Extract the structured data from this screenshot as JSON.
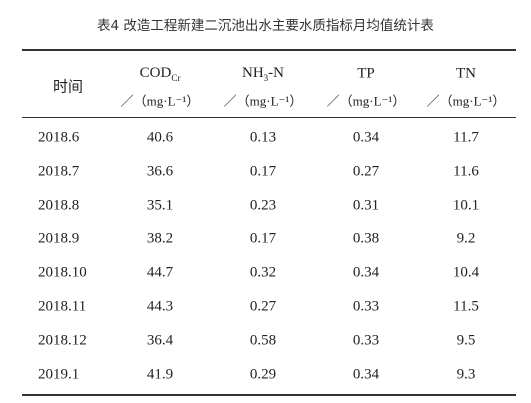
{
  "table": {
    "title": "表4 改造工程新建二沉池出水主要水质指标月均值统计表",
    "header": [
      {
        "name": "时间"
      },
      {
        "name": "COD",
        "sub": "Cr",
        "unit": "／（mg·L⁻¹）"
      },
      {
        "name": "NH",
        "sub": "3",
        "suffix": "-N",
        "unit": "／（mg·L⁻¹）"
      },
      {
        "name": "TP",
        "unit": "／（mg·L⁻¹）"
      },
      {
        "name": "TN",
        "unit": "／（mg·L⁻¹）"
      }
    ],
    "rows": [
      [
        "2018.6",
        "40.6",
        "0.13",
        "0.34",
        "11.7"
      ],
      [
        "2018.7",
        "36.6",
        "0.17",
        "0.27",
        "11.6"
      ],
      [
        "2018.8",
        "35.1",
        "0.23",
        "0.31",
        "10.1"
      ],
      [
        "2018.9",
        "38.2",
        "0.17",
        "0.38",
        "9.2"
      ],
      [
        "2018.10",
        "44.7",
        "0.32",
        "0.34",
        "10.4"
      ],
      [
        "2018.11",
        "44.3",
        "0.27",
        "0.33",
        "11.5"
      ],
      [
        "2018.12",
        "36.4",
        "0.58",
        "0.33",
        "9.5"
      ],
      [
        "2019.1",
        "41.9",
        "0.29",
        "0.34",
        "9.3"
      ]
    ]
  }
}
